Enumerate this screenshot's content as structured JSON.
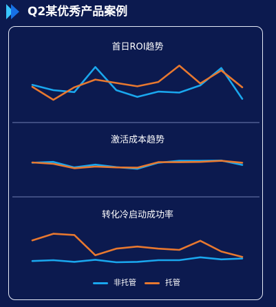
{
  "page": {
    "title": "Q2某优秀产品案例"
  },
  "colors": {
    "background": "#0c1a4f",
    "series_0": "#1aa7ee",
    "series_1": "#e8782f",
    "divider": "#6f7fb3",
    "panel_border": "#e8ecf8",
    "header_arrow_light": "#39c6ff",
    "header_arrow_dark": "#1670e6"
  },
  "legend": {
    "items": [
      {
        "label": "非托管",
        "color": "#1aa7ee"
      },
      {
        "label": "托管",
        "color": "#e8782f"
      }
    ]
  },
  "chart_data": [
    {
      "type": "line",
      "title": "首日ROI趋势",
      "x": [
        1,
        2,
        3,
        4,
        5,
        6,
        7,
        8,
        9,
        10,
        11
      ],
      "ylim": [
        0,
        10
      ],
      "series": [
        {
          "name": "非托管",
          "values": [
            4.1,
            3.0,
            2.6,
            7.8,
            3.0,
            1.6,
            2.7,
            2.5,
            4.0,
            7.6,
            1.2
          ]
        },
        {
          "name": "托管",
          "values": [
            3.7,
            1.0,
            3.6,
            5.2,
            4.5,
            3.8,
            4.7,
            8.1,
            4.4,
            7.1,
            3.6
          ]
        }
      ]
    },
    {
      "type": "line",
      "title": "激活成本趋势",
      "x": [
        1,
        2,
        3,
        4,
        5,
        6,
        7,
        8,
        9,
        10,
        11
      ],
      "ylim": [
        0,
        10
      ],
      "series": [
        {
          "name": "非托管",
          "values": [
            6.4,
            6.7,
            4.7,
            5.7,
            4.8,
            4.2,
            6.4,
            7.1,
            7.1,
            7.2,
            5.6
          ]
        },
        {
          "name": "托管",
          "values": [
            6.5,
            6.0,
            4.4,
            5.0,
            4.7,
            4.6,
            6.6,
            6.6,
            6.7,
            7.1,
            6.4
          ]
        }
      ]
    },
    {
      "type": "line",
      "title": "转化冷启动成功率",
      "x": [
        1,
        2,
        3,
        4,
        5,
        6,
        7,
        8,
        9,
        10,
        11
      ],
      "ylim": [
        0,
        10
      ],
      "series": [
        {
          "name": "非托管",
          "values": [
            1.8,
            2.0,
            1.6,
            2.1,
            1.5,
            1.6,
            2.0,
            2.0,
            2.7,
            2.2,
            2.4
          ]
        },
        {
          "name": "托管",
          "values": [
            6.8,
            8.4,
            8.1,
            3.2,
            4.8,
            5.3,
            4.8,
            4.5,
            6.7,
            4.1,
            2.8
          ]
        }
      ]
    }
  ]
}
